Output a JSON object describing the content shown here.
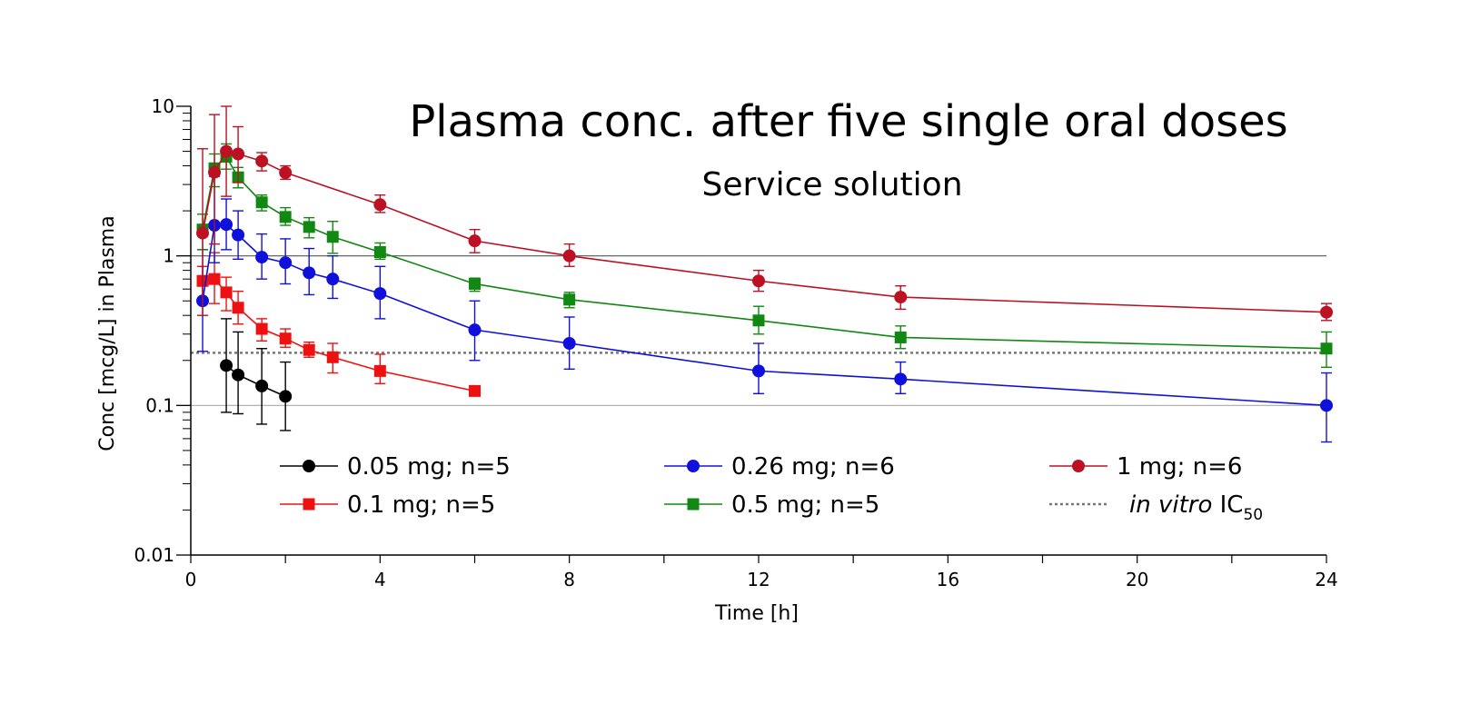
{
  "chart_data": {
    "type": "line",
    "title": "Plasma conc. after five single oral doses",
    "subtitle": "Service solution",
    "xlabel": "Time [h]",
    "ylabel": "Conc [mcg/L] in Plasma",
    "xlim": [
      0,
      24
    ],
    "ylim": [
      0.01,
      10
    ],
    "yscale": "log",
    "x_ticks": [
      0,
      4,
      8,
      12,
      16,
      20,
      24
    ],
    "x_tick_labels": [
      "0",
      "4",
      "8",
      "12",
      "16",
      "20",
      "24"
    ],
    "y_ticks": [
      0.01,
      0.1,
      1,
      10
    ],
    "y_tick_labels": [
      "0.01",
      "0.1",
      "1",
      "10"
    ],
    "reference_lines": [
      {
        "name": "in vitro IC50",
        "y": 0.225,
        "style": "dotted",
        "color": "#777777"
      }
    ],
    "grid_lines_y": [
      0.1,
      1
    ],
    "legend": {
      "placement": "bottom-inside",
      "entries": [
        {
          "label": "0.05 mg; n=5",
          "series": 0
        },
        {
          "label": "0.26 mg; n=6",
          "series": 2
        },
        {
          "label": "1 mg; n=6",
          "series": 4
        },
        {
          "label": "0.1 mg; n=5",
          "series": 1
        },
        {
          "label": "0.5 mg; n=5",
          "series": 3
        },
        {
          "label_italic": "in vitro",
          "label_main": " IC",
          "label_sub": "50",
          "reference": 0
        }
      ]
    },
    "series": [
      {
        "name": "0.05 mg; n=5",
        "color": "#000000",
        "marker": "circle",
        "x": [
          0.75,
          1.0,
          1.5,
          2.0
        ],
        "y": [
          0.185,
          0.16,
          0.135,
          0.115
        ],
        "err_low": [
          0.09,
          0.088,
          0.075,
          0.068
        ],
        "err_high": [
          0.38,
          0.31,
          0.24,
          0.195
        ]
      },
      {
        "name": "0.1 mg; n=5",
        "color": "#ee1111",
        "marker": "square",
        "x": [
          0.25,
          0.5,
          0.75,
          1.0,
          1.5,
          2.0,
          2.5,
          3.0,
          4.0,
          6.0
        ],
        "y": [
          0.68,
          0.7,
          0.57,
          0.45,
          0.325,
          0.28,
          0.235,
          0.21,
          0.17,
          0.125
        ],
        "err_low": [
          0.5,
          0.48,
          0.43,
          0.35,
          0.27,
          0.245,
          0.21,
          0.165,
          0.14,
          0.125
        ],
        "err_high": [
          0.85,
          1.05,
          0.72,
          0.58,
          0.38,
          0.325,
          0.265,
          0.26,
          0.22,
          0.125
        ]
      },
      {
        "name": "0.26 mg; n=6",
        "color": "#1010dd",
        "marker": "circle",
        "x": [
          0.25,
          0.5,
          0.75,
          1.0,
          1.5,
          2.0,
          2.5,
          3.0,
          4.0,
          6.0,
          8.0,
          12.0,
          15.0,
          24.0
        ],
        "y": [
          0.5,
          1.6,
          1.62,
          1.38,
          0.98,
          0.9,
          0.77,
          0.7,
          0.56,
          0.32,
          0.26,
          0.17,
          0.15,
          0.1
        ],
        "err_low": [
          0.23,
          0.9,
          1.1,
          0.95,
          0.7,
          0.65,
          0.55,
          0.52,
          0.38,
          0.2,
          0.175,
          0.12,
          0.12,
          0.057
        ],
        "err_high": [
          1.1,
          3.4,
          2.4,
          2.0,
          1.4,
          1.3,
          1.12,
          1.0,
          0.85,
          0.5,
          0.39,
          0.26,
          0.195,
          0.165
        ]
      },
      {
        "name": "0.5 mg; n=5",
        "color": "#118811",
        "marker": "square",
        "x": [
          0.25,
          0.5,
          0.75,
          1.0,
          1.5,
          2.0,
          2.5,
          3.0,
          4.0,
          6.0,
          8.0,
          12.0,
          15.0,
          24.0
        ],
        "y": [
          1.5,
          3.85,
          4.6,
          3.35,
          2.28,
          1.82,
          1.56,
          1.34,
          1.06,
          0.65,
          0.51,
          0.37,
          0.285,
          0.24
        ],
        "err_low": [
          1.1,
          2.9,
          3.8,
          2.85,
          2.0,
          1.6,
          1.32,
          1.04,
          0.95,
          0.58,
          0.45,
          0.3,
          0.24,
          0.18
        ],
        "err_high": [
          1.9,
          4.8,
          5.6,
          3.9,
          2.55,
          2.1,
          1.8,
          1.7,
          1.22,
          0.71,
          0.57,
          0.46,
          0.34,
          0.31
        ]
      },
      {
        "name": "1 mg; n=6",
        "color": "#bb1122",
        "marker": "circle",
        "x": [
          0.25,
          0.5,
          0.75,
          1.0,
          1.5,
          2.0,
          4.0,
          6.0,
          8.0,
          12.0,
          15.0,
          24.0
        ],
        "y": [
          1.42,
          3.62,
          5.0,
          4.8,
          4.3,
          3.6,
          2.2,
          1.26,
          1.0,
          0.68,
          0.53,
          0.42
        ],
        "err_low": [
          0.4,
          1.2,
          2.5,
          3.1,
          3.7,
          3.25,
          1.95,
          1.05,
          0.85,
          0.58,
          0.44,
          0.37
        ],
        "err_high": [
          5.2,
          8.8,
          10.0,
          7.3,
          4.9,
          4.0,
          2.55,
          1.5,
          1.2,
          0.8,
          0.63,
          0.48
        ]
      }
    ]
  }
}
